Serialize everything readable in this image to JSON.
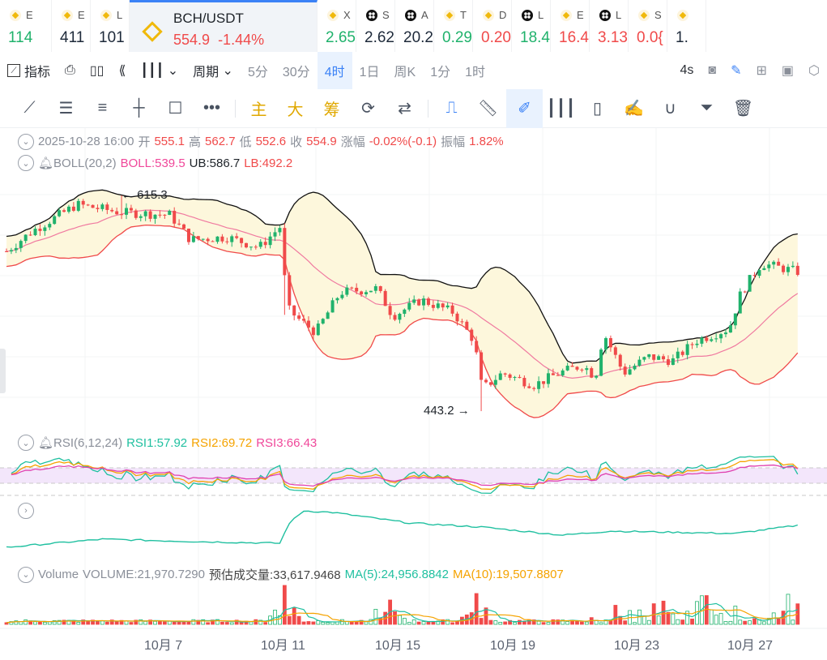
{
  "tickers": [
    {
      "icon": "bnb",
      "name": "E",
      "price": "114",
      "color": "g"
    },
    {
      "icon": "bnb",
      "name": "E",
      "price": "411",
      "color": "d"
    },
    {
      "icon": "bnb",
      "name": "L",
      "price": "101",
      "color": "d"
    },
    {
      "icon": "bnb",
      "name": "BCH/USDT",
      "price": "554.9",
      "change": "-1.44%",
      "color": "r",
      "active": true
    },
    {
      "icon": "bnb",
      "name": "X",
      "price": "2.65",
      "color": "g"
    },
    {
      "icon": "blk",
      "name": "S",
      "price": "2.62",
      "color": "d"
    },
    {
      "icon": "blk",
      "name": "A",
      "price": "20.2",
      "color": "d"
    },
    {
      "icon": "bnb",
      "name": "T",
      "price": "0.29",
      "color": "g"
    },
    {
      "icon": "bnb",
      "name": "D",
      "price": "0.20",
      "color": "r"
    },
    {
      "icon": "blk",
      "name": "L",
      "price": "18.4",
      "color": "g"
    },
    {
      "icon": "bnb",
      "name": "E",
      "price": "16.4",
      "color": "r"
    },
    {
      "icon": "blk",
      "name": "L",
      "price": "3.13",
      "color": "r"
    },
    {
      "icon": "bnb",
      "name": "S",
      "price": "0.0{",
      "color": "r"
    },
    {
      "icon": "bnb",
      "name": "",
      "price": "1.",
      "color": "d"
    }
  ],
  "toolbar": {
    "indicator": "指标",
    "period": "周期",
    "periods": [
      "5分",
      "30分",
      "4时",
      "1日",
      "周K",
      "1分",
      "1时"
    ],
    "selected_period": "4时",
    "refresh": "4s"
  },
  "drawing_tools": {
    "main": "主",
    "big": "大",
    "chip": "筹"
  },
  "ohlc": {
    "datetime": "2025-10-28 16:00",
    "open_label": "开",
    "open": "555.1",
    "high_label": "高",
    "high": "562.7",
    "low_label": "低",
    "low": "552.6",
    "close_label": "收",
    "close": "554.9",
    "change_label": "涨幅",
    "change": "-0.02%(-0.1)",
    "amp_label": "振幅",
    "amp": "1.82%"
  },
  "boll": {
    "name": "BOLL(20,2)",
    "mid": "BOLL:539.5",
    "ub": "UB:586.7",
    "lb": "LB:492.2",
    "max_label": "← 615.3",
    "min_label": "443.2 →"
  },
  "rsi": {
    "name": "RSI(6,12,24)",
    "rsi1": "RSI1:57.92",
    "rsi2": "RSI2:69.72",
    "rsi3": "RSI3:66.43"
  },
  "volume": {
    "name": "Volume",
    "value": "VOLUME:21,970.7290",
    "estimate": "预估成交量:33,617.9468",
    "ma5": "MA(5):24,956.8842",
    "ma10": "MA(10):19,507.8807"
  },
  "xaxis": [
    "10月 7",
    "10月 11",
    "10月 15",
    "10月 19",
    "10月 23",
    "10月 27"
  ],
  "colors": {
    "up": "#20b26c",
    "down": "#f04a4a",
    "boll": "#f07aa0",
    "ub": "#111111",
    "lb": "#f04a4a",
    "rsi1": "#20c0a0",
    "rsi2": "#f5a300",
    "rsi3": "#e040b0"
  },
  "chart_data": {
    "type": "candlestick",
    "interval": "4h",
    "price_path": [
      [
        0,
        570.7
      ],
      [
        5.4,
        586.9
      ],
      [
        14.7,
        608
      ],
      [
        24,
        601.7
      ],
      [
        34.1,
        599.8
      ],
      [
        38.3,
        580
      ],
      [
        46,
        582
      ],
      [
        52.7,
        573.9
      ],
      [
        57,
        590
      ],
      [
        58.6,
        525
      ],
      [
        61.2,
        515.7
      ],
      [
        64.5,
        506
      ],
      [
        69.6,
        538
      ],
      [
        77.2,
        541
      ],
      [
        80.6,
        519
      ],
      [
        86.5,
        532
      ],
      [
        93.2,
        522
      ],
      [
        97.5,
        499.5
      ],
      [
        99.2,
        460.7
      ],
      [
        103.4,
        473.6
      ],
      [
        110.1,
        464
      ],
      [
        115.2,
        473.6
      ],
      [
        120.3,
        480
      ],
      [
        122.8,
        470
      ],
      [
        124.5,
        506
      ],
      [
        128.7,
        473.6
      ],
      [
        133.8,
        486.6
      ],
      [
        138.9,
        483.4
      ],
      [
        143.9,
        499.5
      ],
      [
        150.7,
        509
      ],
      [
        153.2,
        538
      ],
      [
        157.4,
        561
      ],
      [
        165,
        554.5
      ]
    ],
    "indicator2_path": [
      [
        0,
        15
      ],
      [
        20,
        25
      ],
      [
        40,
        22
      ],
      [
        57,
        20
      ],
      [
        59,
        45
      ],
      [
        62,
        60
      ],
      [
        68,
        58
      ],
      [
        84,
        45
      ],
      [
        99,
        40
      ],
      [
        116,
        30
      ],
      [
        126,
        35
      ],
      [
        152,
        32
      ],
      [
        165,
        42
      ]
    ],
    "volume_spikes": [
      [
        58,
        48
      ],
      [
        80,
        30
      ],
      [
        98,
        38
      ],
      [
        135,
        25
      ],
      [
        145,
        30
      ],
      [
        163,
        22
      ]
    ]
  }
}
